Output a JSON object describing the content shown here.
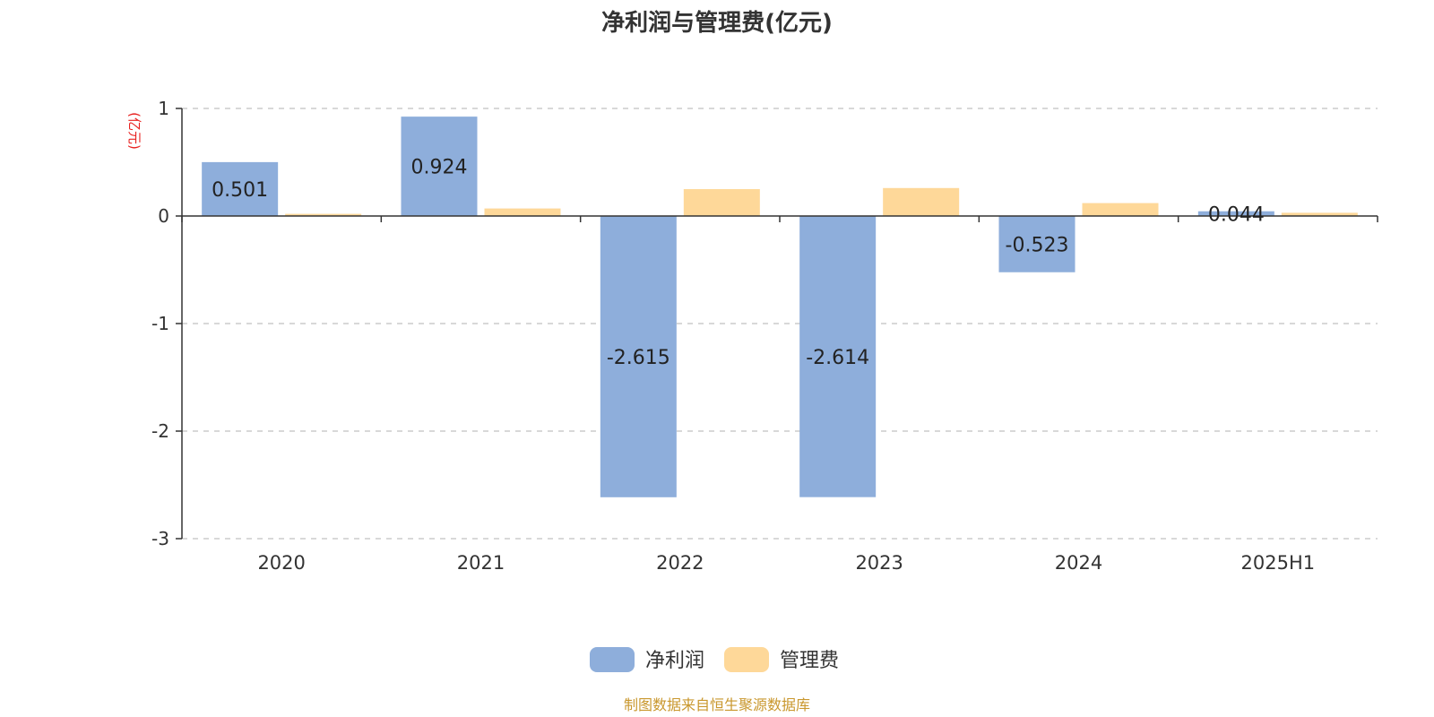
{
  "chart_data": {
    "type": "bar",
    "title": "净利润与管理费(亿元)",
    "ylabel": "(亿元)",
    "xlabel": "",
    "categories": [
      "2020",
      "2021",
      "2022",
      "2023",
      "2024",
      "2025H1"
    ],
    "series": [
      {
        "name": "净利润",
        "color": "#8eaedb",
        "values": [
          0.501,
          0.924,
          -2.615,
          -2.614,
          -0.523,
          0.044
        ],
        "labels": [
          "0.501",
          "0.924",
          "-2.615",
          "-2.614",
          "-0.523",
          "0.044"
        ]
      },
      {
        "name": "管理费",
        "color": "#fed899",
        "values": [
          0.02,
          0.07,
          0.25,
          0.26,
          0.12,
          0.03
        ]
      }
    ],
    "ylim": [
      -3,
      1
    ],
    "yticks": [
      1,
      0,
      -1,
      -2,
      -3
    ],
    "grid": true,
    "legend": "bottom-center"
  },
  "footer": {
    "source": "制图数据来自恒生聚源数据库"
  }
}
